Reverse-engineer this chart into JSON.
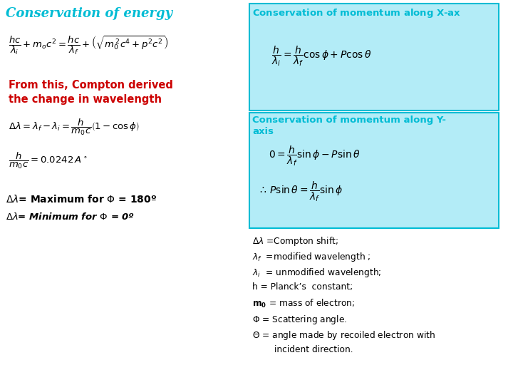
{
  "bg_color": "#ffffff",
  "cyan_color": "#00bcd4",
  "red_color": "#cc0000",
  "black_color": "#000000",
  "light_blue_bg": "#b3ecf7",
  "title_left": "Conservation of energy",
  "legend_lines": [
    "$\\Delta\\lambda$ =Compton shift;",
    "$\\lambda_f$  =modified wavelength ;",
    "$\\lambda_i$  = unmodified wavelength;",
    "h = Planck’s  constant;",
    "$\\mathbf{m_0}$ = mass of electron;",
    "$\\Phi$ = Scattering angle.",
    "$\\Theta$ = angle made by recoiled electron with"
  ],
  "legend_last": "        incident direction."
}
